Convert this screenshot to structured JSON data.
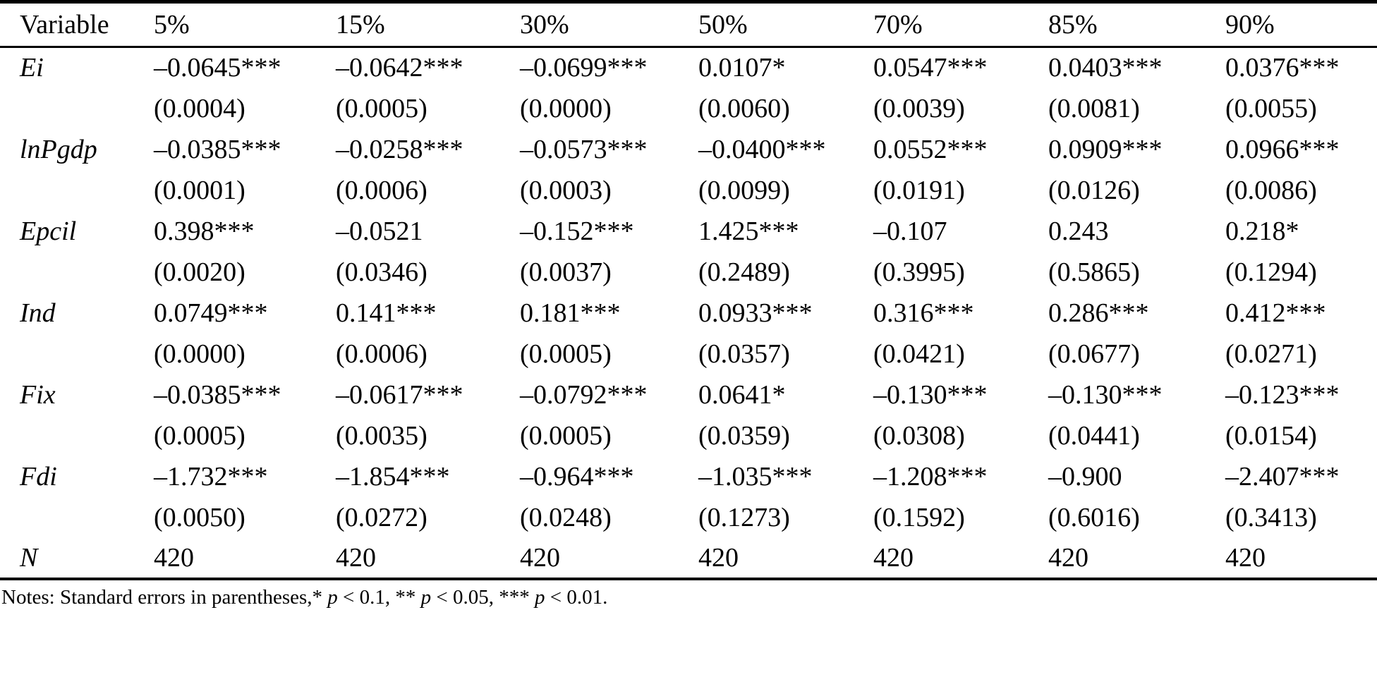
{
  "colors": {
    "background": "#ffffff",
    "text": "#000000",
    "rule": "#000000"
  },
  "table": {
    "columns": [
      "Variable",
      "5%",
      "15%",
      "30%",
      "50%",
      "70%",
      "85%",
      "90%"
    ],
    "rows": [
      {
        "type": "coef",
        "variable": "Ei",
        "cells": [
          "–0.0645***",
          "–0.0642***",
          "–0.0699***",
          "0.0107*",
          "0.0547***",
          "0.0403***",
          "0.0376***"
        ]
      },
      {
        "type": "se",
        "variable": "",
        "cells": [
          "(0.0004)",
          "(0.0005)",
          "(0.0000)",
          "(0.0060)",
          "(0.0039)",
          "(0.0081)",
          "(0.0055)"
        ]
      },
      {
        "type": "coef",
        "variable": "lnPgdp",
        "cells": [
          "–0.0385***",
          "–0.0258***",
          "–0.0573***",
          "–0.0400***",
          "0.0552***",
          "0.0909***",
          "0.0966***"
        ]
      },
      {
        "type": "se",
        "variable": "",
        "cells": [
          "(0.0001)",
          "(0.0006)",
          "(0.0003)",
          "(0.0099)",
          "(0.0191)",
          "(0.0126)",
          "(0.0086)"
        ]
      },
      {
        "type": "coef",
        "variable": "Epcil",
        "cells": [
          "0.398***",
          "–0.0521",
          "–0.152***",
          "1.425***",
          "–0.107",
          "0.243",
          "0.218*"
        ]
      },
      {
        "type": "se",
        "variable": "",
        "cells": [
          "(0.0020)",
          "(0.0346)",
          "(0.0037)",
          "(0.2489)",
          "(0.3995)",
          "(0.5865)",
          "(0.1294)"
        ]
      },
      {
        "type": "coef",
        "variable": "Ind",
        "cells": [
          "0.0749***",
          "0.141***",
          "0.181***",
          "0.0933***",
          "0.316***",
          "0.286***",
          "0.412***"
        ]
      },
      {
        "type": "se",
        "variable": "",
        "cells": [
          "(0.0000)",
          "(0.0006)",
          "(0.0005)",
          "(0.0357)",
          "(0.0421)",
          "(0.0677)",
          "(0.0271)"
        ]
      },
      {
        "type": "coef",
        "variable": "Fix",
        "cells": [
          "–0.0385***",
          "–0.0617***",
          "–0.0792***",
          "0.0641*",
          "–0.130***",
          "–0.130***",
          "–0.123***"
        ]
      },
      {
        "type": "se",
        "variable": "",
        "cells": [
          "(0.0005)",
          "(0.0035)",
          "(0.0005)",
          "(0.0359)",
          "(0.0308)",
          "(0.0441)",
          "(0.0154)"
        ]
      },
      {
        "type": "coef",
        "variable": "Fdi",
        "cells": [
          "–1.732***",
          "–1.854***",
          "–0.964***",
          "–1.035***",
          "–1.208***",
          "–0.900",
          "–2.407***"
        ]
      },
      {
        "type": "se",
        "variable": "",
        "cells": [
          "(0.0050)",
          "(0.0272)",
          "(0.0248)",
          "(0.1273)",
          "(0.1592)",
          "(0.6016)",
          "(0.3413)"
        ]
      },
      {
        "type": "coef",
        "variable": "N",
        "cells": [
          "420",
          "420",
          "420",
          "420",
          "420",
          "420",
          "420"
        ]
      }
    ]
  },
  "notes": {
    "segments": [
      {
        "text": "Notes: Standard errors in parentheses,* ",
        "italic": false
      },
      {
        "text": "p",
        "italic": true
      },
      {
        "text": " < 0.1, ** ",
        "italic": false
      },
      {
        "text": "p",
        "italic": true
      },
      {
        "text": " < 0.05, *** ",
        "italic": false
      },
      {
        "text": "p",
        "italic": true
      },
      {
        "text": " < 0.01.",
        "italic": false
      }
    ]
  }
}
